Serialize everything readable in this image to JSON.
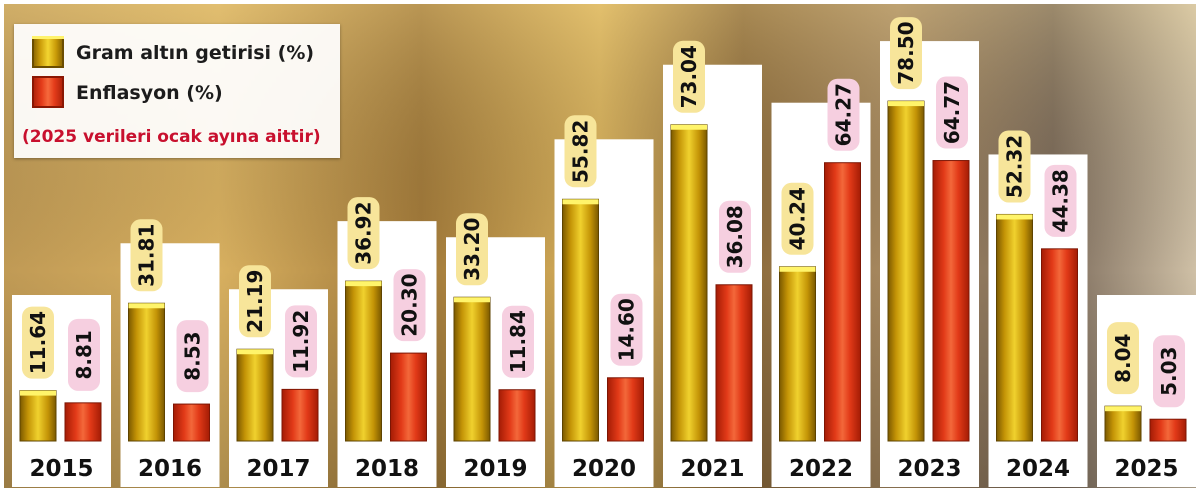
{
  "chart_data": {
    "type": "bar",
    "categories": [
      "2015",
      "2016",
      "2017",
      "2018",
      "2019",
      "2020",
      "2021",
      "2022",
      "2023",
      "2024",
      "2025"
    ],
    "series": [
      {
        "name": "Gram altın getirisi (%)",
        "values": [
          11.64,
          31.81,
          21.19,
          36.92,
          33.2,
          55.82,
          73.04,
          40.24,
          78.5,
          52.32,
          8.04
        ],
        "labels": [
          "11.64",
          "31.81",
          "21.19",
          "36.92",
          "33.20",
          "55.82",
          "73.04",
          "40.24",
          "78.50",
          "52.32",
          "8.04"
        ],
        "color": "#e3b51a"
      },
      {
        "name": "Enflasyon (%)",
        "values": [
          8.81,
          8.53,
          11.92,
          20.3,
          11.84,
          14.6,
          36.08,
          64.27,
          64.77,
          44.38,
          5.03
        ],
        "labels": [
          "8.81",
          "8.53",
          "11.92",
          "20.30",
          "11.84",
          "14.60",
          "36.08",
          "64.27",
          "64.77",
          "44.38",
          "5.03"
        ],
        "color": "#e8411c"
      }
    ],
    "note": "(2025 verileri ocak ayına aittir)",
    "legend_position": "top-left",
    "xlabel": "",
    "ylabel": "",
    "grid": false,
    "colors": {
      "gold_label_bg": "#f7e59a",
      "red_label_bg": "#f6cfe0",
      "year_panel_bg": "#ffffff"
    }
  }
}
